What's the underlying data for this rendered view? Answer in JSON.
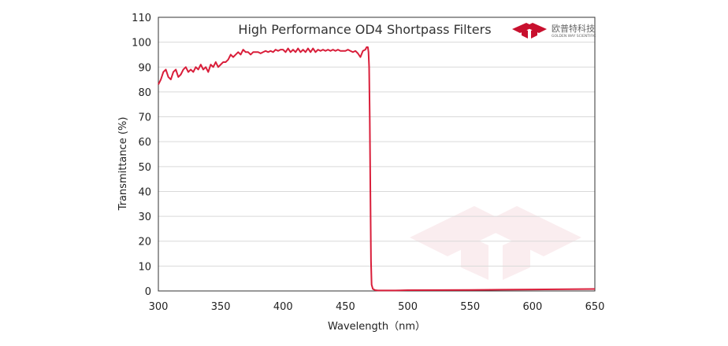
{
  "chart_data": {
    "type": "line",
    "title": "High Performance OD4 Shortpass  Filters",
    "xlabel": "Wavelength（nm）",
    "ylabel": "Transmittance  (%)",
    "xlim": [
      300,
      650
    ],
    "ylim": [
      0,
      110
    ],
    "x_ticks": [
      300,
      350,
      400,
      450,
      500,
      550,
      600,
      650
    ],
    "y_ticks": [
      0,
      10,
      20,
      30,
      40,
      50,
      60,
      70,
      80,
      90,
      100,
      110
    ],
    "grid": "horizontal",
    "legend": "none",
    "series": [
      {
        "color": "#d91e3a",
        "x": [
          300,
          302,
          304,
          306,
          308,
          310,
          312,
          314,
          316,
          318,
          320,
          322,
          324,
          326,
          328,
          330,
          332,
          334,
          336,
          338,
          340,
          342,
          344,
          346,
          348,
          350,
          352,
          354,
          356,
          358,
          360,
          362,
          364,
          366,
          368,
          370,
          372,
          374,
          376,
          378,
          380,
          382,
          384,
          386,
          388,
          390,
          392,
          394,
          396,
          398,
          400,
          402,
          404,
          406,
          408,
          410,
          412,
          414,
          416,
          418,
          420,
          422,
          424,
          426,
          428,
          430,
          432,
          434,
          436,
          438,
          440,
          442,
          444,
          446,
          448,
          450,
          452,
          454,
          456,
          458,
          460,
          462,
          464,
          466,
          467,
          468,
          468.5,
          469,
          469.5,
          470,
          470.5,
          471,
          472,
          474,
          476,
          480,
          490,
          500,
          550,
          600,
          650
        ],
        "y": [
          83,
          85,
          88,
          89,
          86,
          85,
          88,
          89,
          86,
          87,
          89,
          90,
          88,
          89,
          88,
          90,
          89,
          91,
          89,
          90,
          88,
          91,
          90,
          92,
          90,
          91,
          92,
          92,
          93,
          95,
          94,
          95,
          96,
          95,
          97,
          96,
          96,
          95,
          96,
          96,
          96,
          95.5,
          96,
          96.5,
          96,
          96.5,
          96,
          97,
          96.5,
          97,
          97,
          96,
          97.5,
          96,
          97,
          96,
          97.5,
          96,
          97,
          96,
          97.5,
          96,
          97.5,
          96,
          97,
          96.5,
          97,
          96.5,
          97,
          96.5,
          97,
          96.5,
          97,
          96.5,
          96.5,
          96.5,
          97,
          96.5,
          96,
          96.5,
          95.5,
          94,
          96.5,
          97,
          98,
          98,
          96,
          90,
          70,
          40,
          12,
          2.5,
          0.8,
          0.3,
          0.2,
          0.2,
          0.2,
          0.3,
          0.4,
          0.6,
          0.8
        ]
      }
    ]
  },
  "logo": {
    "cn": "欧普特科技",
    "en": "GOLDEN WAY SCIENTIFIC",
    "color": "#c8102e"
  }
}
